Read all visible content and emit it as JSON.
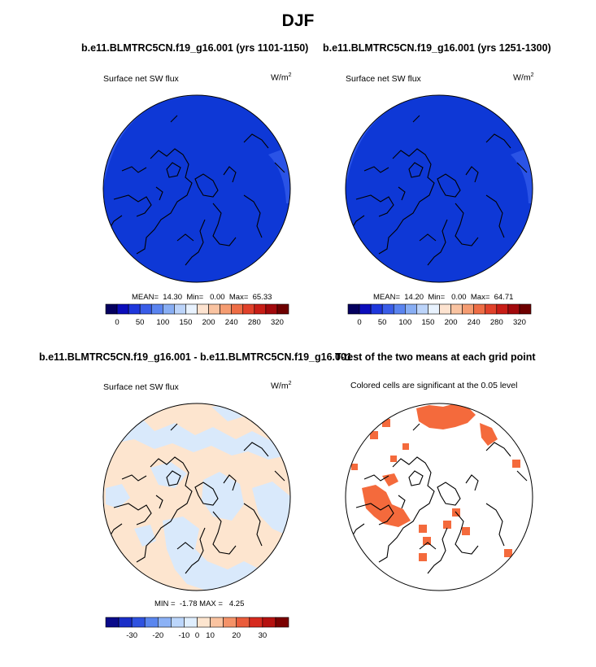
{
  "page": {
    "title": "DJF"
  },
  "panels": [
    {
      "id": "p1",
      "title": "b.e11.BLMTRC5CN.f19_g16.001 (yrs 1101-1150)",
      "left_label": "Surface net SW flux",
      "units_base": "W/m",
      "units_sup": "2",
      "stats": "MEAN=  14.30  Min=   0.00  Max=  65.33",
      "cb_labels": [
        "0",
        "50",
        "100",
        "150",
        "200",
        "240",
        "280",
        "320"
      ]
    },
    {
      "id": "p2",
      "title": "b.e11.BLMTRC5CN.f19_g16.001 (yrs 1251-1300)",
      "left_label": "Surface net SW flux",
      "units_base": "W/m",
      "units_sup": "2",
      "stats": "MEAN=  14.20  Min=   0.00  Max=  64.71",
      "cb_labels": [
        "0",
        "50",
        "100",
        "150",
        "200",
        "240",
        "280",
        "320"
      ]
    },
    {
      "id": "p3",
      "title": "b.e11.BLMTRC5CN.f19_g16.001 - b.e11.BLMTRC5CN.f19_g16.001",
      "left_label": "Surface net SW flux",
      "units_base": "W/m",
      "units_sup": "2",
      "stats": "MIN =  -1.78 MAX =   4.25",
      "cb_labels": [
        "-30",
        "-20",
        "-10",
        "0",
        "10",
        "20",
        "30"
      ]
    },
    {
      "id": "p4",
      "title": "T-test of the two means at each grid point",
      "left_label": "Colored cells are significant at the 0.05 level"
    }
  ],
  "colors": {
    "abs_scale": [
      "#05005f",
      "#0b0dbb",
      "#1e37dc",
      "#3a5de8",
      "#5a84f0",
      "#88aef4",
      "#bcd4fa",
      "#e8f2fe",
      "#fde3d0",
      "#f9c3a1",
      "#f59c71",
      "#ee6d45",
      "#e1412a",
      "#c81d16",
      "#a2090c",
      "#6e0000"
    ],
    "diff_scale": [
      "#0a0a8a",
      "#1a2ec8",
      "#2f52e0",
      "#5a86ef",
      "#8cb2f6",
      "#bcd6fb",
      "#dfeefe",
      "#fde5cf",
      "#fac3a0",
      "#f49268",
      "#ea5c3b",
      "#d62a1e",
      "#b5110f",
      "#7a0000"
    ],
    "map_fill_dark": "#0e38d6",
    "map_fill_light": "#2a53e6",
    "diff_pos": "#fde5cf",
    "diff_neg": "#d9e9fb",
    "signif": "#f46a3c"
  },
  "chart_data": [
    {
      "type": "heatmap",
      "title": "b.e11.BLMTRC5CN.f19_g16.001 (yrs 1101-1150)",
      "field": "Surface net SW flux",
      "units": "W/m2",
      "projection": "polar stereographic (North Pole)",
      "stats": {
        "mean": 14.3,
        "min": 0.0,
        "max": 65.33
      },
      "colorbar_ticks": [
        0,
        50,
        100,
        150,
        200,
        240,
        280,
        320
      ]
    },
    {
      "type": "heatmap",
      "title": "b.e11.BLMTRC5CN.f19_g16.001 (yrs 1251-1300)",
      "field": "Surface net SW flux",
      "units": "W/m2",
      "projection": "polar stereographic (North Pole)",
      "stats": {
        "mean": 14.2,
        "min": 0.0,
        "max": 64.71
      },
      "colorbar_ticks": [
        0,
        50,
        100,
        150,
        200,
        240,
        280,
        320
      ]
    },
    {
      "type": "heatmap",
      "title": "b.e11.BLMTRC5CN.f19_g16.001 - b.e11.BLMTRC5CN.f19_g16.001",
      "field": "Surface net SW flux",
      "units": "W/m2",
      "projection": "polar stereographic (North Pole)",
      "stats": {
        "min": -1.78,
        "max": 4.25
      },
      "colorbar_ticks": [
        -30,
        -20,
        -10,
        0,
        10,
        20,
        30
      ]
    },
    {
      "type": "heatmap",
      "title": "T-test of the two means at each grid point",
      "field": "Colored cells are significant at the 0.05 level",
      "projection": "polar stereographic (North Pole)"
    }
  ]
}
